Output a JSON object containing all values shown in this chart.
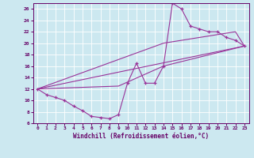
{
  "bg_color": "#cce8f0",
  "line_color": "#993399",
  "xlabel": "Windchill (Refroidissement éolien,°C)",
  "xlim": [
    -0.5,
    23.5
  ],
  "ylim": [
    6,
    27
  ],
  "yticks": [
    6,
    8,
    10,
    12,
    14,
    16,
    18,
    20,
    22,
    24,
    26
  ],
  "xticks": [
    0,
    1,
    2,
    3,
    4,
    5,
    6,
    7,
    8,
    9,
    10,
    11,
    12,
    13,
    14,
    15,
    16,
    17,
    18,
    19,
    20,
    21,
    22,
    23
  ],
  "lines": [
    {
      "x": [
        0,
        1,
        2,
        3,
        4,
        5,
        6,
        7,
        8,
        9,
        10,
        11,
        12,
        13,
        14,
        15,
        16,
        17,
        18,
        19,
        20,
        21,
        22,
        23
      ],
      "y": [
        12,
        11,
        10.5,
        10,
        9,
        8.2,
        7.2,
        7,
        6.8,
        7.5,
        13,
        16.5,
        13,
        13,
        16,
        27,
        26,
        23,
        22.5,
        22,
        22,
        21,
        20.5,
        19.5
      ],
      "markers": true
    },
    {
      "x": [
        0,
        23
      ],
      "y": [
        12,
        19.5
      ],
      "markers": false
    },
    {
      "x": [
        0,
        14,
        22,
        23
      ],
      "y": [
        12,
        20,
        22,
        19.5
      ],
      "markers": false
    },
    {
      "x": [
        0,
        9,
        14,
        23
      ],
      "y": [
        12,
        12.5,
        16,
        19.5
      ],
      "markers": false
    }
  ]
}
